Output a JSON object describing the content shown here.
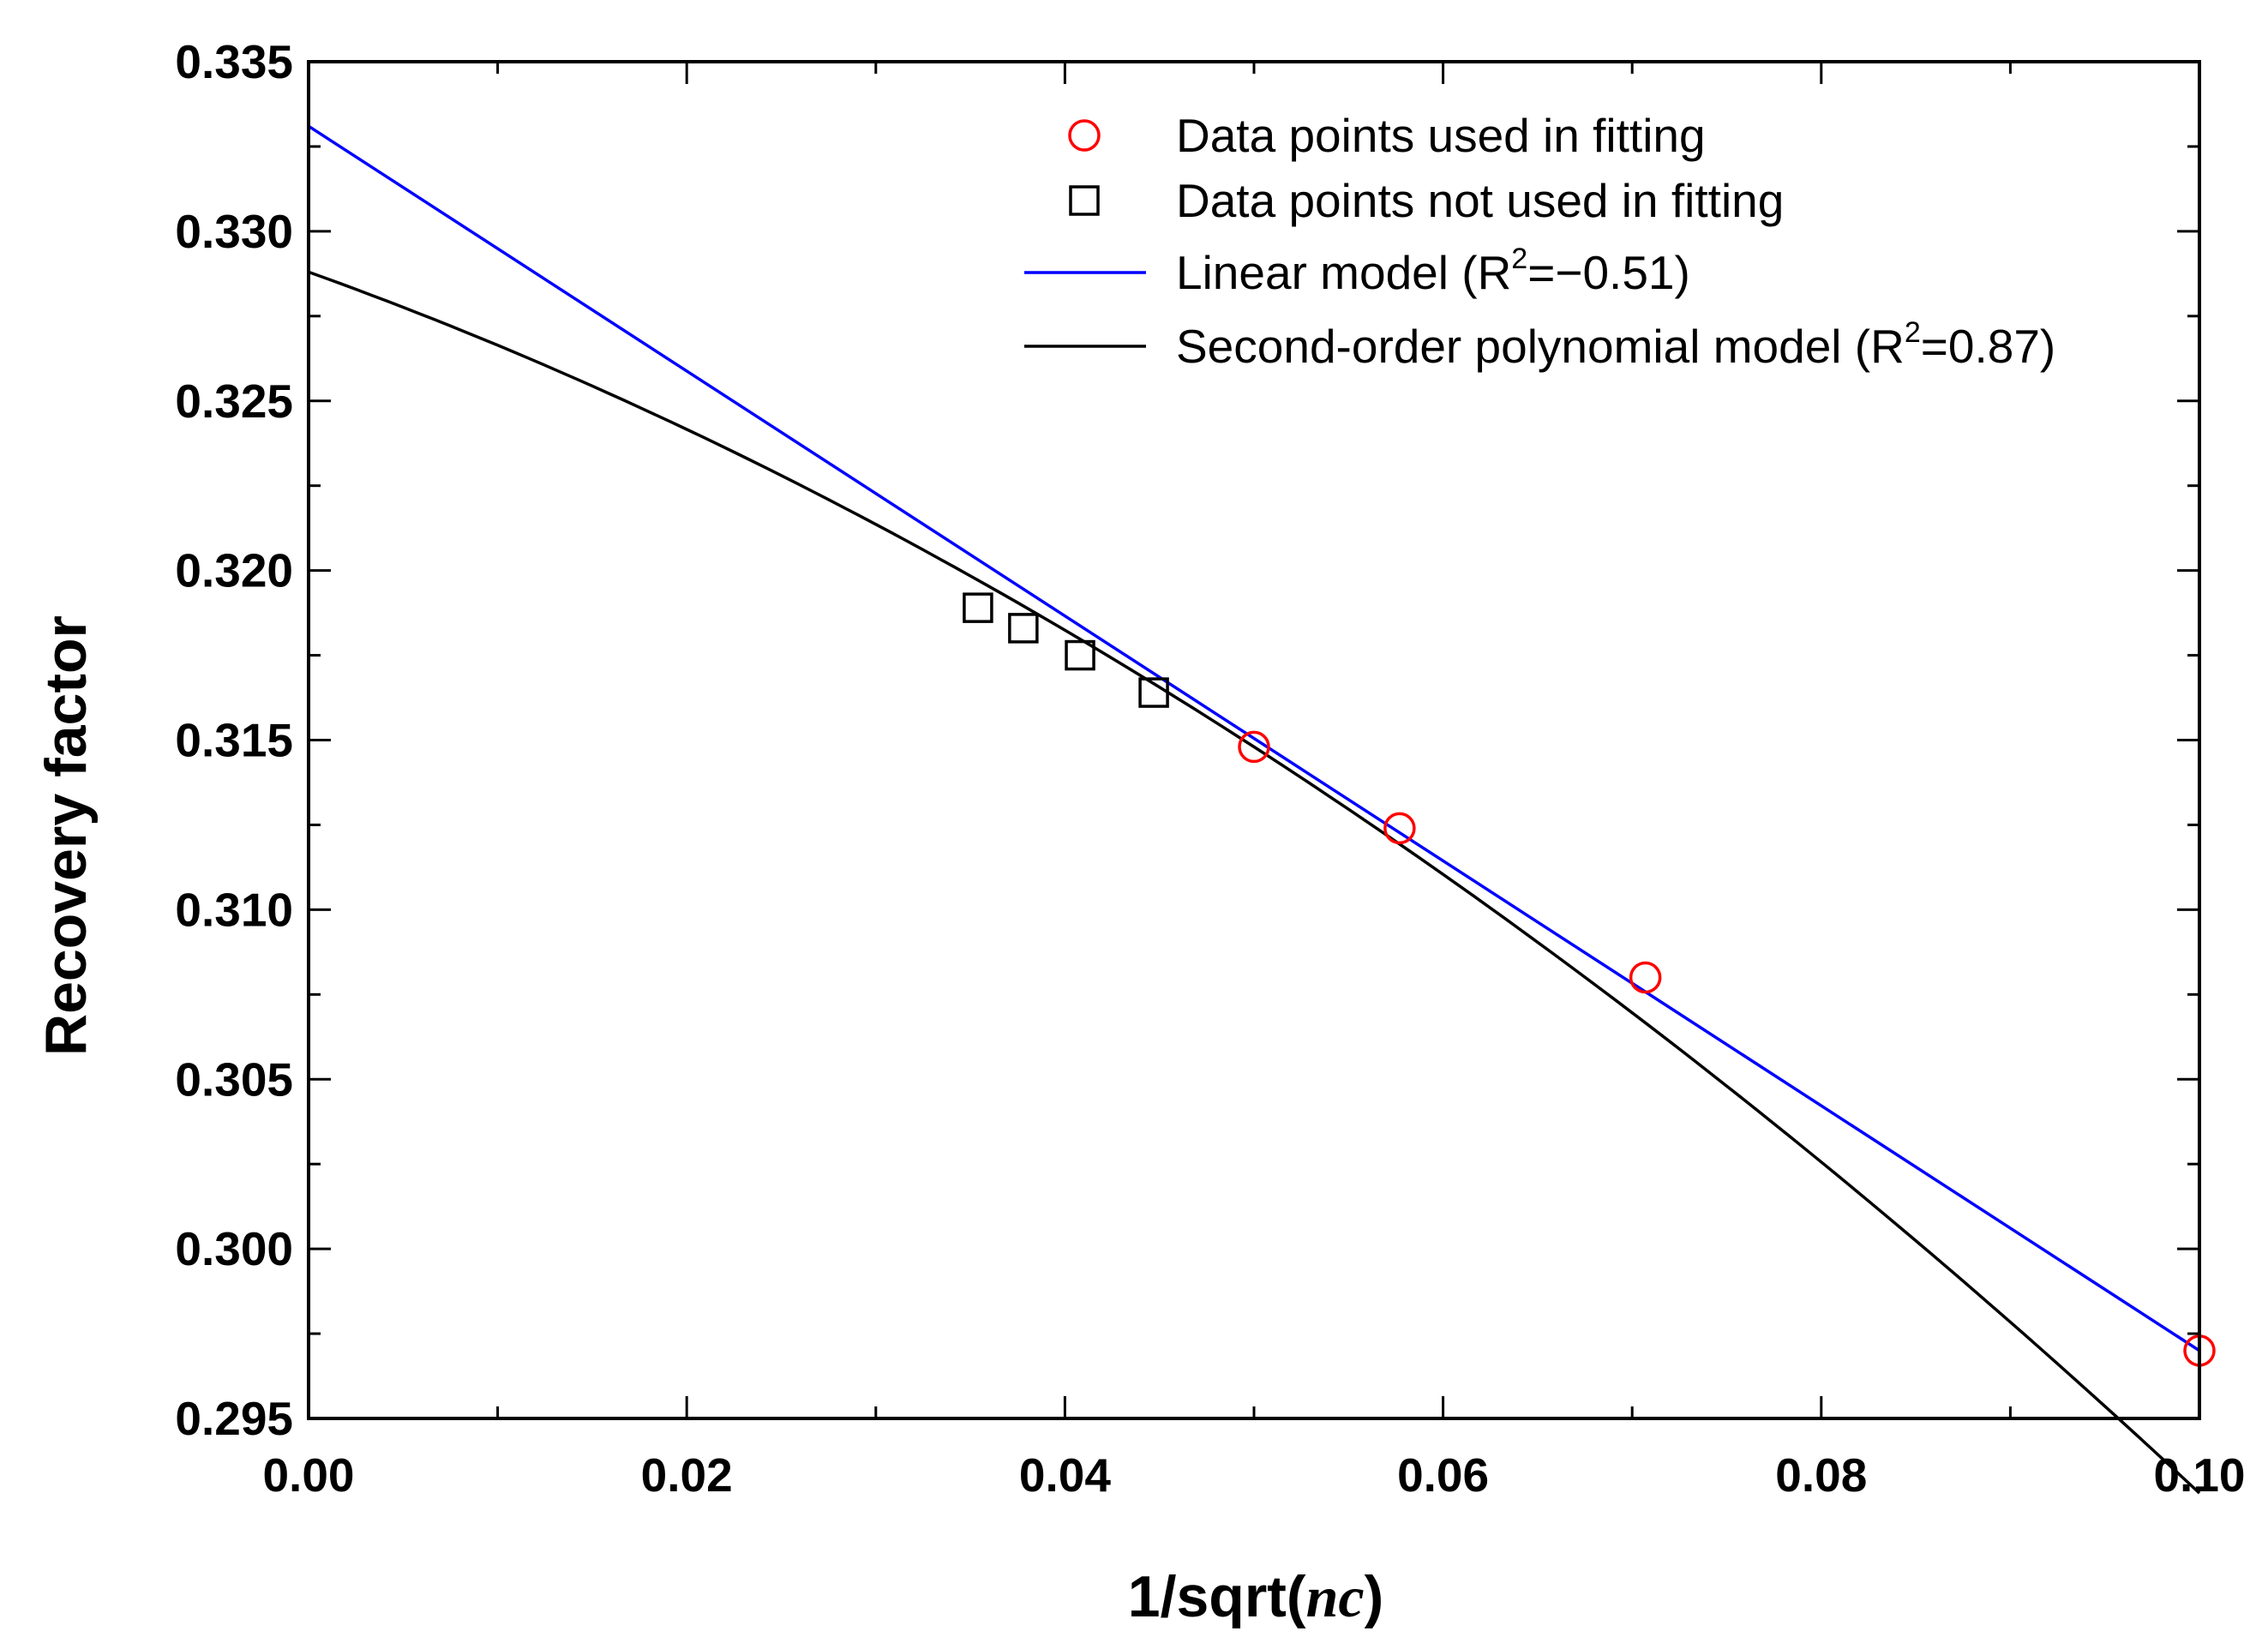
{
  "chart_data": {
    "type": "scatter",
    "xlabel": "1/sqrt(",
    "xlabel_italic": "nc",
    "xlabel_close": ")",
    "ylabel": "Recovery factor",
    "xlim": [
      0.0,
      0.1
    ],
    "ylim": [
      0.295,
      0.335
    ],
    "x_ticks": [
      "0.00",
      "0.02",
      "0.04",
      "0.06",
      "0.08",
      "0.10"
    ],
    "x_tick_values": [
      0.0,
      0.02,
      0.04,
      0.06,
      0.08,
      0.1
    ],
    "y_ticks": [
      "0.295",
      "0.300",
      "0.305",
      "0.310",
      "0.315",
      "0.320",
      "0.325",
      "0.330",
      "0.335"
    ],
    "y_tick_values": [
      0.295,
      0.3,
      0.305,
      0.31,
      0.315,
      0.32,
      0.325,
      0.33,
      0.335
    ],
    "series": [
      {
        "name": "Data points used in fitting",
        "kind": "circle",
        "color": "#ff0000",
        "x": [
          0.05,
          0.0577,
          0.0707,
          0.1
        ],
        "y": [
          0.3148,
          0.3124,
          0.308,
          0.297
        ]
      },
      {
        "name": "Data points not used in fitting",
        "kind": "square",
        "color": "#000000",
        "x": [
          0.0354,
          0.0378,
          0.0408,
          0.0447
        ],
        "y": [
          0.3189,
          0.3183,
          0.3175,
          0.3164
        ]
      },
      {
        "name": "Linear model",
        "kind": "line",
        "color": "#0000ff",
        "intercept": 0.3331,
        "slope": -0.361
      },
      {
        "name": "Second-order polynomial model",
        "kind": "poly2",
        "color": "#000000",
        "a0": 0.3288,
        "a1": -0.2,
        "a2": -1.6
      }
    ],
    "legend": [
      {
        "text": "Data points used in fitting",
        "marker": "circle",
        "color": "#ff0000"
      },
      {
        "text": "Data points not used in fitting",
        "marker": "square",
        "color": "#000000"
      },
      {
        "text": "Linear model (R",
        "sup": "2",
        "tail": "=−0.51)",
        "marker": "line",
        "color": "#0000ff"
      },
      {
        "text": "Second-order polynomial model (R",
        "sup": "2",
        "tail": "=0.87)",
        "marker": "line",
        "color": "#000000"
      }
    ],
    "legend_position": "top-right"
  }
}
